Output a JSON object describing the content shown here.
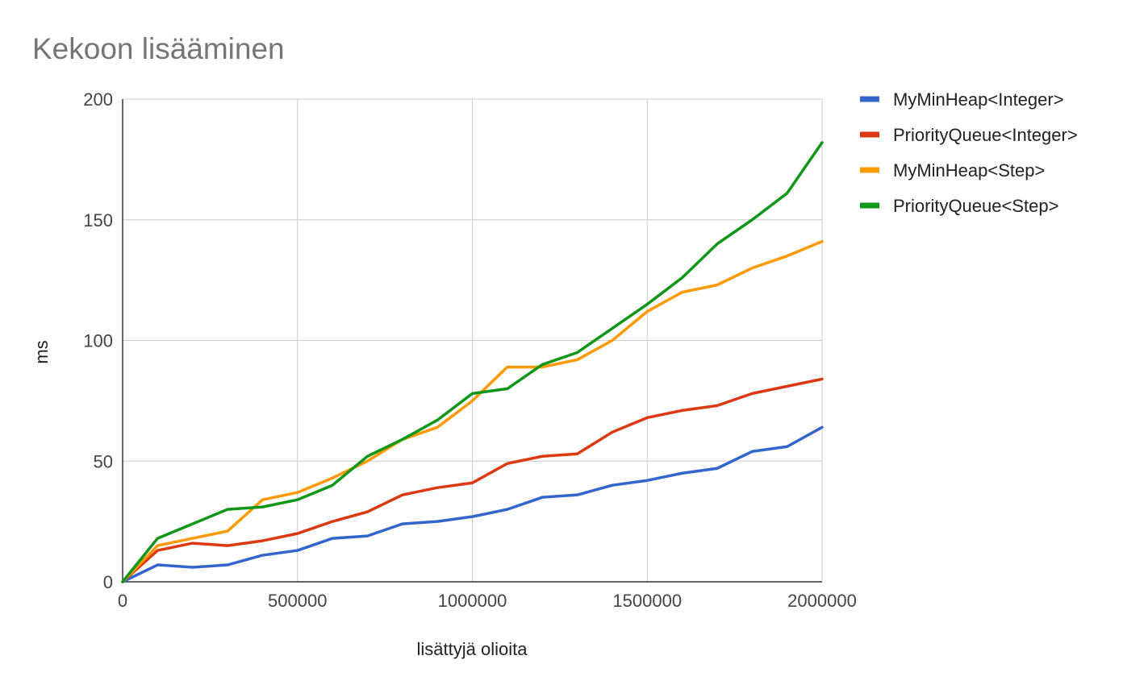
{
  "chart_data": {
    "type": "line",
    "title": "Kekoon lisääminen",
    "xlabel": "lisättyjä olioita",
    "ylabel": "ms",
    "xlim": [
      0,
      2000000
    ],
    "ylim": [
      0,
      200
    ],
    "x_ticks": [
      "0",
      "500000",
      "1000000",
      "1500000",
      "2000000"
    ],
    "y_ticks": [
      "0",
      "50",
      "100",
      "150",
      "200"
    ],
    "grid": true,
    "legend_position": "right",
    "x": [
      0,
      100000,
      200000,
      300000,
      400000,
      500000,
      600000,
      700000,
      800000,
      900000,
      1000000,
      1100000,
      1200000,
      1300000,
      1400000,
      1500000,
      1600000,
      1700000,
      1800000,
      1900000,
      2000000
    ],
    "series": [
      {
        "name": "MyMinHeap<Integer>",
        "color": "#3366cc",
        "values": [
          0,
          7,
          6,
          7,
          11,
          13,
          18,
          19,
          24,
          25,
          27,
          30,
          35,
          36,
          40,
          42,
          45,
          47,
          54,
          56,
          64
        ]
      },
      {
        "name": "PriorityQueue<Integer>",
        "color": "#dc3912",
        "values": [
          0,
          13,
          16,
          15,
          17,
          20,
          25,
          29,
          36,
          39,
          41,
          49,
          52,
          53,
          62,
          68,
          71,
          73,
          78,
          81,
          84
        ]
      },
      {
        "name": "MyMinHeap<Step>",
        "color": "#ff9900",
        "values": [
          0,
          15,
          18,
          21,
          34,
          37,
          43,
          50,
          59,
          64,
          75,
          89,
          89,
          92,
          100,
          112,
          120,
          123,
          130,
          135,
          141
        ]
      },
      {
        "name": "PriorityQueue<Step>",
        "color": "#109618",
        "values": [
          0,
          18,
          24,
          30,
          31,
          34,
          40,
          52,
          59,
          67,
          78,
          80,
          90,
          95,
          105,
          115,
          126,
          140,
          150,
          161,
          182
        ]
      }
    ]
  }
}
